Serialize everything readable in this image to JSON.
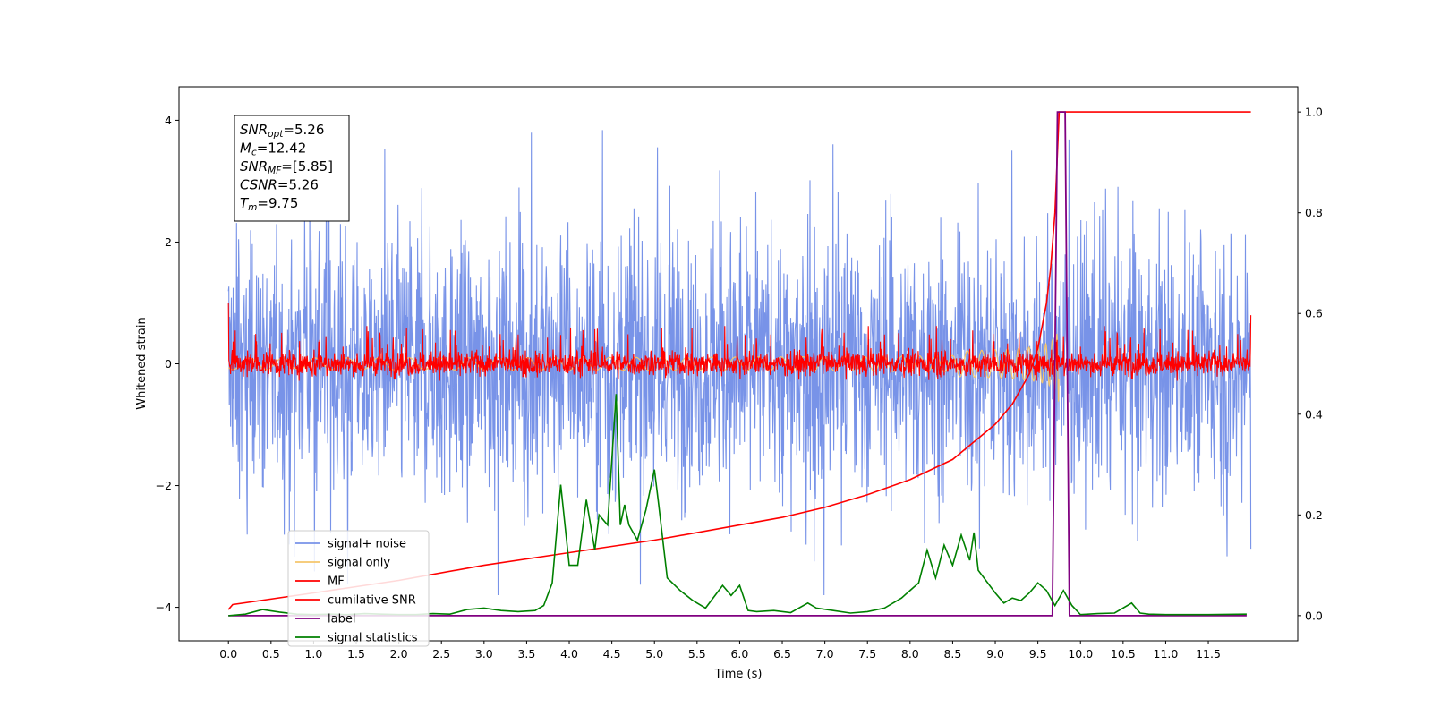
{
  "chart_data": {
    "type": "line",
    "xlabel": "Time (s)",
    "ylabel": "Whitened strain",
    "xlim": [
      -0.58,
      12.55
    ],
    "ylim": [
      -4.55,
      4.55
    ],
    "y2lim": [
      -0.05,
      1.05
    ],
    "x_ticks": [
      0.0,
      0.5,
      1.0,
      1.5,
      2.0,
      2.5,
      3.0,
      3.5,
      4.0,
      4.5,
      5.0,
      5.5,
      6.0,
      6.5,
      7.0,
      7.5,
      8.0,
      8.5,
      9.0,
      9.5,
      10.0,
      10.5,
      11.0,
      11.5
    ],
    "x_tick_labels": [
      "0.0",
      "0.5",
      "1.0",
      "1.5",
      "2.0",
      "2.5",
      "3.0",
      "3.5",
      "4.0",
      "4.5",
      "5.0",
      "5.5",
      "6.0",
      "6.5",
      "7.0",
      "7.5",
      "8.0",
      "8.5",
      "9.0",
      "9.5",
      "10.0",
      "10.5",
      "11.0",
      "11.5"
    ],
    "y_ticks": [
      4,
      2,
      0,
      -2,
      -4
    ],
    "y_tick_labels": [
      "4",
      "2",
      "0",
      "−2",
      "−4"
    ],
    "y2_ticks": [
      1.0,
      0.8,
      0.6,
      0.4,
      0.2,
      0.0
    ],
    "y2_tick_labels": [
      "1.0",
      "0.8",
      "0.6",
      "0.4",
      "0.2",
      "0.0"
    ],
    "grid": false,
    "legend_position": "lower-left",
    "series": [
      {
        "name": "signal+ noise",
        "axis": "left",
        "color": "#7893e8",
        "style": "noisy",
        "time_range": [
          0,
          12
        ],
        "amplitude_envelope": 1.55,
        "spike_peaks_approx": [
          4.13,
          -3.8
        ]
      },
      {
        "name": "signal only",
        "axis": "left",
        "color": "#f5c66b",
        "style": "chirp",
        "time_range": [
          0,
          9.75
        ],
        "merger_time": 9.75,
        "peak_amplitude": 0.75
      },
      {
        "name": "MF",
        "axis": "left",
        "color": "#ff0000",
        "style": "noisy",
        "time_range": [
          0,
          12
        ],
        "amplitude_envelope": 0.28,
        "end_values": [
          1.0,
          0.8
        ]
      },
      {
        "name": "cumilative SNR",
        "axis": "right",
        "color": "#ff0000",
        "style": "smooth",
        "x": [
          0.0,
          0.05,
          1.0,
          2.0,
          3.0,
          4.0,
          5.0,
          6.0,
          6.5,
          7.0,
          7.5,
          8.0,
          8.5,
          9.0,
          9.2,
          9.4,
          9.5,
          9.6,
          9.65,
          9.7,
          9.75,
          12.0
        ],
        "values": [
          0.012,
          0.022,
          0.045,
          0.07,
          0.1,
          0.125,
          0.15,
          0.18,
          0.195,
          0.215,
          0.24,
          0.27,
          0.31,
          0.38,
          0.42,
          0.48,
          0.53,
          0.62,
          0.69,
          0.8,
          1.0,
          1.0
        ]
      },
      {
        "name": "label",
        "axis": "right",
        "color": "#800080",
        "style": "step",
        "x": [
          0.0,
          9.67,
          9.73,
          9.82,
          9.87,
          11.95
        ],
        "values": [
          0.0,
          0.0,
          1.0,
          1.0,
          0.0,
          0.0
        ]
      },
      {
        "name": "signal statistics",
        "axis": "right",
        "color": "#008000",
        "style": "line",
        "x": [
          0.0,
          0.2,
          0.4,
          0.6,
          0.8,
          1.0,
          1.2,
          1.4,
          1.6,
          1.8,
          2.0,
          2.2,
          2.4,
          2.6,
          2.8,
          3.0,
          3.2,
          3.4,
          3.6,
          3.7,
          3.8,
          3.9,
          4.0,
          4.1,
          4.2,
          4.3,
          4.35,
          4.45,
          4.55,
          4.6,
          4.65,
          4.7,
          4.8,
          4.9,
          5.0,
          5.05,
          5.15,
          5.3,
          5.45,
          5.6,
          5.8,
          5.9,
          6.0,
          6.1,
          6.2,
          6.4,
          6.6,
          6.8,
          6.9,
          7.1,
          7.3,
          7.5,
          7.7,
          7.9,
          8.1,
          8.2,
          8.3,
          8.4,
          8.5,
          8.6,
          8.7,
          8.75,
          8.8,
          9.0,
          9.1,
          9.2,
          9.3,
          9.4,
          9.5,
          9.6,
          9.7,
          9.8,
          9.9,
          10.0,
          10.2,
          10.4,
          10.6,
          10.7,
          10.8,
          11.0,
          11.5,
          11.95
        ],
        "values": [
          0.0,
          0.003,
          0.012,
          0.007,
          0.003,
          0.002,
          0.003,
          0.002,
          0.004,
          0.003,
          0.002,
          0.002,
          0.004,
          0.003,
          0.012,
          0.015,
          0.01,
          0.008,
          0.01,
          0.02,
          0.065,
          0.26,
          0.1,
          0.1,
          0.23,
          0.13,
          0.2,
          0.18,
          0.44,
          0.18,
          0.22,
          0.18,
          0.15,
          0.21,
          0.29,
          0.22,
          0.075,
          0.05,
          0.03,
          0.015,
          0.06,
          0.04,
          0.06,
          0.01,
          0.008,
          0.01,
          0.006,
          0.025,
          0.015,
          0.01,
          0.005,
          0.008,
          0.015,
          0.035,
          0.065,
          0.13,
          0.075,
          0.14,
          0.1,
          0.16,
          0.11,
          0.165,
          0.09,
          0.045,
          0.025,
          0.035,
          0.03,
          0.045,
          0.065,
          0.05,
          0.02,
          0.05,
          0.02,
          0.002,
          0.004,
          0.005,
          0.025,
          0.005,
          0.003,
          0.002,
          0.002,
          0.003
        ]
      }
    ],
    "info_box": [
      {
        "main": "SNR",
        "sub": "opt",
        "rest": "=5.26"
      },
      {
        "main": "M",
        "sub": "c",
        "rest": "=12.42"
      },
      {
        "main": "SNR",
        "sub": "MF",
        "rest": "=[5.85]"
      },
      {
        "main": "CSNR",
        "sub": "",
        "rest": "=5.26"
      },
      {
        "main": "T",
        "sub": "m",
        "rest": "=9.75"
      }
    ]
  }
}
